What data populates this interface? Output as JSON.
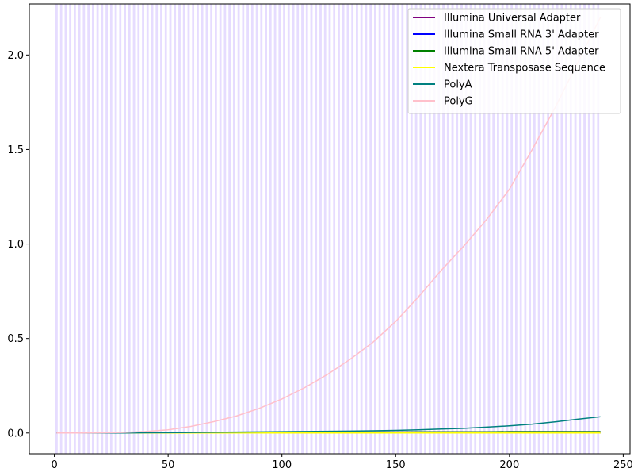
{
  "chart_data": {
    "type": "line",
    "title": "",
    "xlabel": "",
    "ylabel": "",
    "xlim": [
      -11,
      253
    ],
    "ylim": [
      -0.11,
      2.27
    ],
    "xticks": [
      0,
      50,
      100,
      150,
      200,
      250
    ],
    "xtick_labels": [
      "0",
      "50",
      "100",
      "150",
      "200",
      "250"
    ],
    "yticks": [
      0.0,
      0.5,
      1.0,
      1.5,
      2.0
    ],
    "ytick_labels": [
      "0.0",
      "0.5",
      "1.0",
      "1.5",
      "2.0"
    ],
    "grid": false,
    "legend_position": "top-right",
    "background_bands": {
      "colors": [
        "#e6dcff",
        "#ffffff"
      ],
      "x_start": 1,
      "x_end": 240,
      "width": 1
    },
    "x": [
      1,
      10,
      20,
      30,
      40,
      50,
      60,
      70,
      80,
      90,
      100,
      110,
      120,
      130,
      140,
      150,
      160,
      170,
      180,
      190,
      200,
      210,
      220,
      230,
      240
    ],
    "series": [
      {
        "name": "Illumina Universal Adapter",
        "color": "#800080",
        "values": [
          0,
          0,
          0,
          0,
          0.001,
          0.001,
          0.002,
          0.002,
          0.003,
          0.003,
          0.004,
          0.004,
          0.004,
          0.005,
          0.005,
          0.005,
          0.006,
          0.006,
          0.006,
          0.006,
          0.007,
          0.007,
          0.007,
          0.007,
          0.007
        ]
      },
      {
        "name": "Illumina Small RNA 3' Adapter",
        "color": "#0000ff",
        "values": [
          0,
          0,
          0,
          0,
          0,
          0,
          0,
          0,
          0,
          0,
          0,
          0,
          0,
          0,
          0,
          0,
          0,
          0,
          0,
          0,
          0,
          0,
          0,
          0,
          0
        ]
      },
      {
        "name": "Illumina Small RNA 5' Adapter",
        "color": "#008000",
        "values": [
          0,
          0,
          0,
          0,
          0.001,
          0.001,
          0.002,
          0.002,
          0.003,
          0.003,
          0.004,
          0.004,
          0.004,
          0.005,
          0.005,
          0.005,
          0.006,
          0.006,
          0.006,
          0.006,
          0.007,
          0.007,
          0.007,
          0.007,
          0.007
        ]
      },
      {
        "name": "Nextera Transposase Sequence",
        "color": "#ffff00",
        "values": [
          0,
          0,
          0,
          0,
          0,
          0,
          0,
          0,
          0,
          0,
          0,
          0,
          0,
          0,
          0,
          0,
          0,
          0,
          0,
          0,
          0,
          0,
          0,
          0,
          0
        ]
      },
      {
        "name": "PolyA",
        "color": "#008080",
        "values": [
          0,
          0,
          0,
          0,
          0.001,
          0.002,
          0.003,
          0.004,
          0.005,
          0.006,
          0.007,
          0.008,
          0.009,
          0.01,
          0.012,
          0.014,
          0.017,
          0.021,
          0.025,
          0.031,
          0.038,
          0.047,
          0.059,
          0.073,
          0.086
        ]
      },
      {
        "name": "PolyG",
        "color": "#ffc0cb",
        "values": [
          0,
          0,
          0.001,
          0.003,
          0.008,
          0.017,
          0.035,
          0.06,
          0.09,
          0.13,
          0.18,
          0.24,
          0.31,
          0.39,
          0.48,
          0.59,
          0.72,
          0.86,
          0.99,
          1.13,
          1.29,
          1.5,
          1.72,
          1.96,
          2.2
        ]
      }
    ]
  }
}
